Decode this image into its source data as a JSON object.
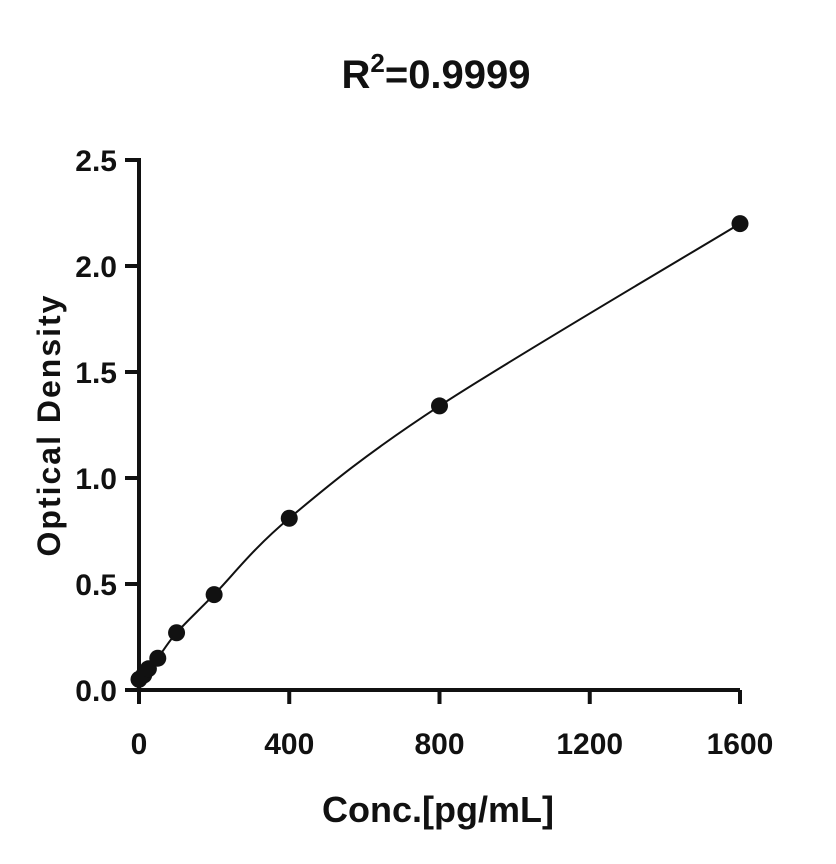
{
  "chart_data": {
    "type": "scatter",
    "title": {
      "base": "R",
      "superscript": "2",
      "rest": "=0.9999"
    },
    "xlabel": "Conc.[pg/mL]",
    "ylabel": "Optical Density",
    "xlim": [
      0,
      1600
    ],
    "ylim": [
      0,
      2.5
    ],
    "xticks": [
      0,
      400,
      800,
      1200,
      1600
    ],
    "xtick_labels": [
      "0",
      "400",
      "800",
      "1200",
      "1600"
    ],
    "yticks": [
      0,
      0.5,
      1.0,
      1.5,
      2.0,
      2.5
    ],
    "ytick_labels": [
      "0.0",
      "0.5",
      "1.0",
      "1.5",
      "2.0",
      "2.5"
    ],
    "grid": false,
    "legend": "none",
    "series": [
      {
        "x": [
          0,
          12.5,
          25,
          50,
          100,
          200,
          400,
          800,
          1600
        ],
        "y": [
          0.05,
          0.07,
          0.1,
          0.15,
          0.27,
          0.45,
          0.81,
          1.34,
          2.2
        ]
      }
    ],
    "fit_curve": true,
    "colors": {
      "points": "#111111",
      "line": "#111111",
      "axes": "#111111"
    }
  }
}
